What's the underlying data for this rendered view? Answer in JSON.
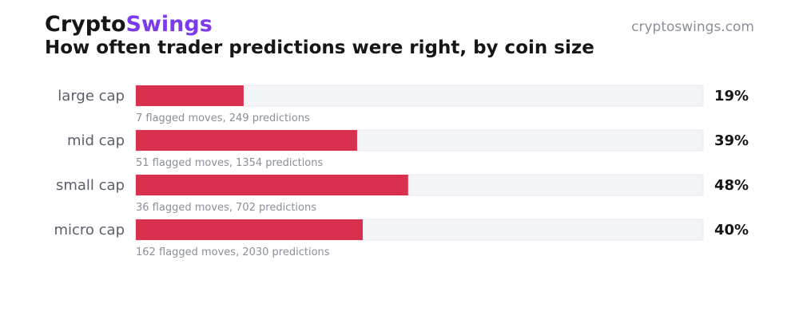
{
  "header": {
    "brand_first": "Crypto",
    "brand_second": "Swings",
    "site": "cryptoswings.com",
    "title": "How often trader predictions were right, by coin size"
  },
  "colors": {
    "bar": "#d93050",
    "track": "#f3f4f8",
    "track_border": "#e8e9f2",
    "brand_accent": "#7c3aed"
  },
  "chart_data": {
    "type": "bar",
    "orientation": "horizontal",
    "categories": [
      "large cap",
      "mid cap",
      "small cap",
      "micro cap"
    ],
    "values": [
      19,
      39,
      48,
      40
    ],
    "value_labels": [
      "19%",
      "39%",
      "48%",
      "40%"
    ],
    "notes": [
      "7 flagged moves, 249 predictions",
      "51 flagged moves, 1354 predictions",
      "36 flagged moves, 702 predictions",
      "162 flagged moves, 2030 predictions"
    ],
    "xlim": [
      0,
      100
    ],
    "grid": false,
    "legend": "none"
  }
}
